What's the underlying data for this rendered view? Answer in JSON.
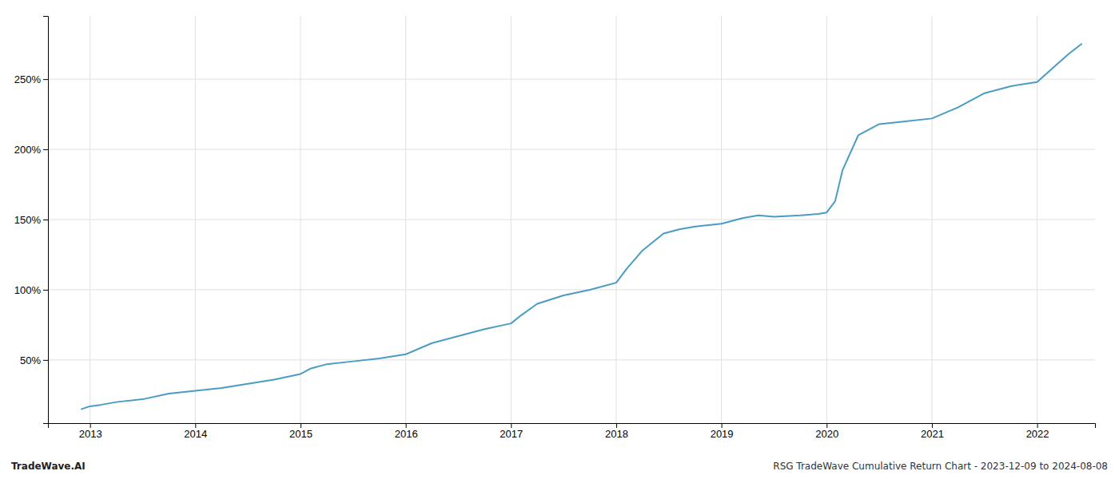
{
  "chart_data": {
    "type": "line",
    "x": [
      2012.92,
      2013.0,
      2013.1,
      2013.25,
      2013.5,
      2013.75,
      2014.0,
      2014.25,
      2014.5,
      2014.75,
      2015.0,
      2015.1,
      2015.25,
      2015.5,
      2015.75,
      2016.0,
      2016.25,
      2016.5,
      2016.75,
      2017.0,
      2017.1,
      2017.25,
      2017.5,
      2017.75,
      2018.0,
      2018.1,
      2018.25,
      2018.45,
      2018.6,
      2018.75,
      2019.0,
      2019.1,
      2019.2,
      2019.35,
      2019.5,
      2019.75,
      2019.92,
      2020.0,
      2020.08,
      2020.15,
      2020.3,
      2020.5,
      2020.75,
      2021.0,
      2021.25,
      2021.5,
      2021.75,
      2022.0,
      2022.15,
      2022.3,
      2022.42
    ],
    "values": [
      15,
      17,
      18,
      20,
      22,
      26,
      28,
      30,
      33,
      36,
      40,
      44,
      47,
      49,
      51,
      54,
      62,
      67,
      72,
      76,
      82,
      90,
      96,
      100,
      105,
      115,
      128,
      140,
      143,
      145,
      147,
      149,
      151,
      153,
      152,
      153,
      154,
      155,
      163,
      185,
      210,
      218,
      220,
      222,
      230,
      240,
      245,
      248,
      258,
      268,
      275
    ],
    "color": "#4a9cc2",
    "xlim": [
      2012.6,
      2022.55
    ],
    "xticks": [
      2013,
      2014,
      2015,
      2016,
      2017,
      2018,
      2019,
      2020,
      2021,
      2022
    ],
    "ylim": [
      5,
      295
    ],
    "yticks": [
      {
        "value": 50,
        "label": "50%"
      },
      {
        "value": 100,
        "label": "100%"
      },
      {
        "value": 150,
        "label": "150%"
      },
      {
        "value": 200,
        "label": "200%"
      },
      {
        "value": 250,
        "label": "250%"
      }
    ],
    "grid": true,
    "annotations": [
      "TradeWave.AI",
      "RSG TradeWave Cumulative Return Chart - 2023-12-09 to 2024-08-08"
    ]
  }
}
